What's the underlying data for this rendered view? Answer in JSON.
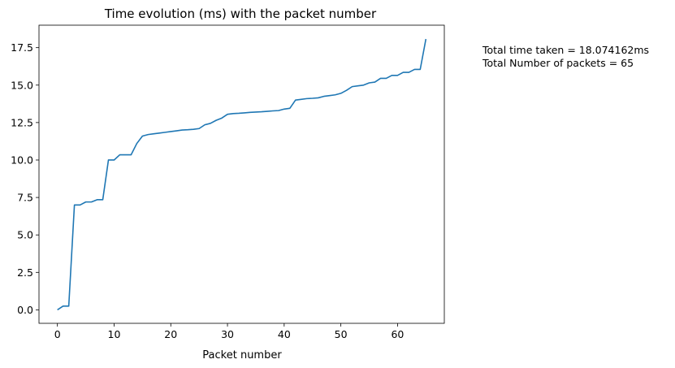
{
  "chart_data": {
    "type": "line",
    "title": "Time evolution (ms) with the packet number",
    "xlabel": "Packet number",
    "ylabel": "",
    "xlim": [
      -3.25,
      68.25
    ],
    "ylim": [
      -0.9,
      19.0
    ],
    "x_ticks": [
      0,
      10,
      20,
      30,
      40,
      50,
      60
    ],
    "x_tick_labels": [
      "0",
      "10",
      "20",
      "30",
      "40",
      "50",
      "60"
    ],
    "y_ticks": [
      0.0,
      2.5,
      5.0,
      7.5,
      10.0,
      12.5,
      15.0,
      17.5
    ],
    "y_tick_labels": [
      "0.0",
      "2.5",
      "5.0",
      "7.5",
      "10.0",
      "12.5",
      "15.0",
      "17.5"
    ],
    "grid": false,
    "series": [
      {
        "color": "#1f77b4",
        "x": [
          0,
          1,
          2,
          3,
          4,
          5,
          6,
          7,
          8,
          9,
          10,
          11,
          12,
          13,
          14,
          15,
          16,
          17,
          18,
          19,
          20,
          21,
          22,
          23,
          24,
          25,
          26,
          27,
          28,
          29,
          30,
          31,
          32,
          33,
          34,
          35,
          36,
          37,
          38,
          39,
          40,
          41,
          42,
          43,
          44,
          45,
          46,
          47,
          48,
          49,
          50,
          51,
          52,
          53,
          54,
          55,
          56,
          57,
          58,
          59,
          60,
          61,
          62,
          63,
          64,
          65
        ],
        "y": [
          0.0,
          0.25,
          0.25,
          7.0,
          7.0,
          7.2,
          7.2,
          7.35,
          7.35,
          10.0,
          10.0,
          10.35,
          10.35,
          10.35,
          11.1,
          11.6,
          11.7,
          11.75,
          11.8,
          11.85,
          11.9,
          11.95,
          12.0,
          12.02,
          12.05,
          12.1,
          12.35,
          12.45,
          12.65,
          12.8,
          13.05,
          13.1,
          13.12,
          13.15,
          13.18,
          13.2,
          13.22,
          13.25,
          13.28,
          13.3,
          13.4,
          13.45,
          14.0,
          14.05,
          14.1,
          14.12,
          14.15,
          14.25,
          14.3,
          14.35,
          14.45,
          14.65,
          14.9,
          14.95,
          15.0,
          15.15,
          15.2,
          15.45,
          15.45,
          15.65,
          15.65,
          15.85,
          15.85,
          16.05,
          16.05,
          18.074
        ]
      }
    ],
    "annotations": [
      "Total time taken = 18.074162ms",
      "Total Number of packets = 65"
    ]
  }
}
